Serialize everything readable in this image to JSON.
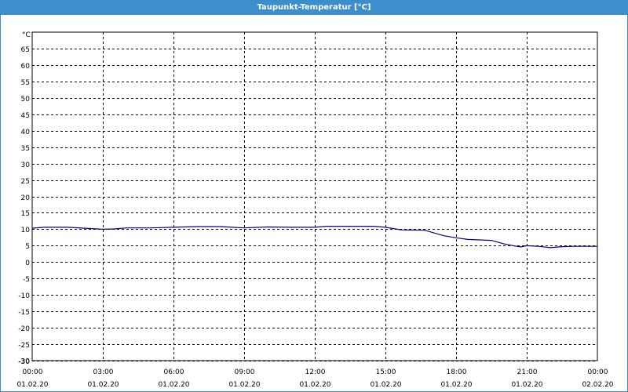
{
  "window": {
    "title": "Taupunkt-Temperatur [°C]"
  },
  "colors": {
    "titlebar": "#3d8fcc",
    "series": "#00008b",
    "grid": "#000000"
  },
  "chart_data": {
    "type": "line",
    "title": "Taupunkt-Temperatur [°C]",
    "ylabel": "°C",
    "ylim": [
      -30,
      70
    ],
    "yticks": [
      -30,
      -25,
      -20,
      -15,
      -10,
      -5,
      0,
      5,
      10,
      15,
      20,
      25,
      30,
      35,
      40,
      45,
      50,
      55,
      60,
      65
    ],
    "xlim": [
      "01.02.20 00:00",
      "02.02.20 00:00"
    ],
    "xticks": [
      {
        "time": "00:00",
        "date": "01.02.20"
      },
      {
        "time": "03:00",
        "date": "01.02.20"
      },
      {
        "time": "06:00",
        "date": "01.02.20"
      },
      {
        "time": "09:00",
        "date": "01.02.20"
      },
      {
        "time": "12:00",
        "date": "01.02.20"
      },
      {
        "time": "15:00",
        "date": "01.02.20"
      },
      {
        "time": "18:00",
        "date": "01.02.20"
      },
      {
        "time": "21:00",
        "date": "01.02.20"
      },
      {
        "time": "00:00",
        "date": "02.02.20"
      }
    ],
    "grid": true,
    "series": [
      {
        "values": [
          {
            "x": "01.02.20 00:00",
            "y": 10.3
          },
          {
            "x": "01.02.20 00:30",
            "y": 10.6
          },
          {
            "x": "01.02.20 01:30",
            "y": 10.6
          },
          {
            "x": "01.02.20 02:15",
            "y": 10.3
          },
          {
            "x": "01.02.20 03:00",
            "y": 10.0
          },
          {
            "x": "01.02.20 03:30",
            "y": 10.1
          },
          {
            "x": "01.02.20 04:00",
            "y": 10.4
          },
          {
            "x": "01.02.20 05:00",
            "y": 10.4
          },
          {
            "x": "01.02.20 05:30",
            "y": 10.5
          },
          {
            "x": "01.02.20 06:00",
            "y": 10.6
          },
          {
            "x": "01.02.20 07:00",
            "y": 10.8
          },
          {
            "x": "01.02.20 08:00",
            "y": 10.8
          },
          {
            "x": "01.02.20 08:30",
            "y": 10.6
          },
          {
            "x": "01.02.20 09:00",
            "y": 10.4
          },
          {
            "x": "01.02.20 10:00",
            "y": 10.7
          },
          {
            "x": "01.02.20 11:00",
            "y": 10.6
          },
          {
            "x": "01.02.20 12:00",
            "y": 10.6
          },
          {
            "x": "01.02.20 12:30",
            "y": 10.9
          },
          {
            "x": "01.02.20 14:30",
            "y": 10.9
          },
          {
            "x": "01.02.20 15:00",
            "y": 10.6
          },
          {
            "x": "01.02.20 15:40",
            "y": 9.8
          },
          {
            "x": "01.02.20 16:40",
            "y": 9.7
          },
          {
            "x": "01.02.20 17:30",
            "y": 8.0
          },
          {
            "x": "01.02.20 18:00",
            "y": 7.4
          },
          {
            "x": "01.02.20 18:30",
            "y": 6.9
          },
          {
            "x": "01.02.20 19:30",
            "y": 6.6
          },
          {
            "x": "01.02.20 20:00",
            "y": 5.6
          },
          {
            "x": "01.02.20 20:30",
            "y": 4.9
          },
          {
            "x": "01.02.20 20:45",
            "y": 4.6
          },
          {
            "x": "01.02.20 21:00",
            "y": 5.0
          },
          {
            "x": "01.02.20 21:30",
            "y": 4.8
          },
          {
            "x": "01.02.20 22:00",
            "y": 4.4
          },
          {
            "x": "01.02.20 22:30",
            "y": 4.7
          },
          {
            "x": "01.02.20 23:00",
            "y": 4.8
          },
          {
            "x": "02.02.20 00:00",
            "y": 4.8
          }
        ]
      }
    ]
  }
}
